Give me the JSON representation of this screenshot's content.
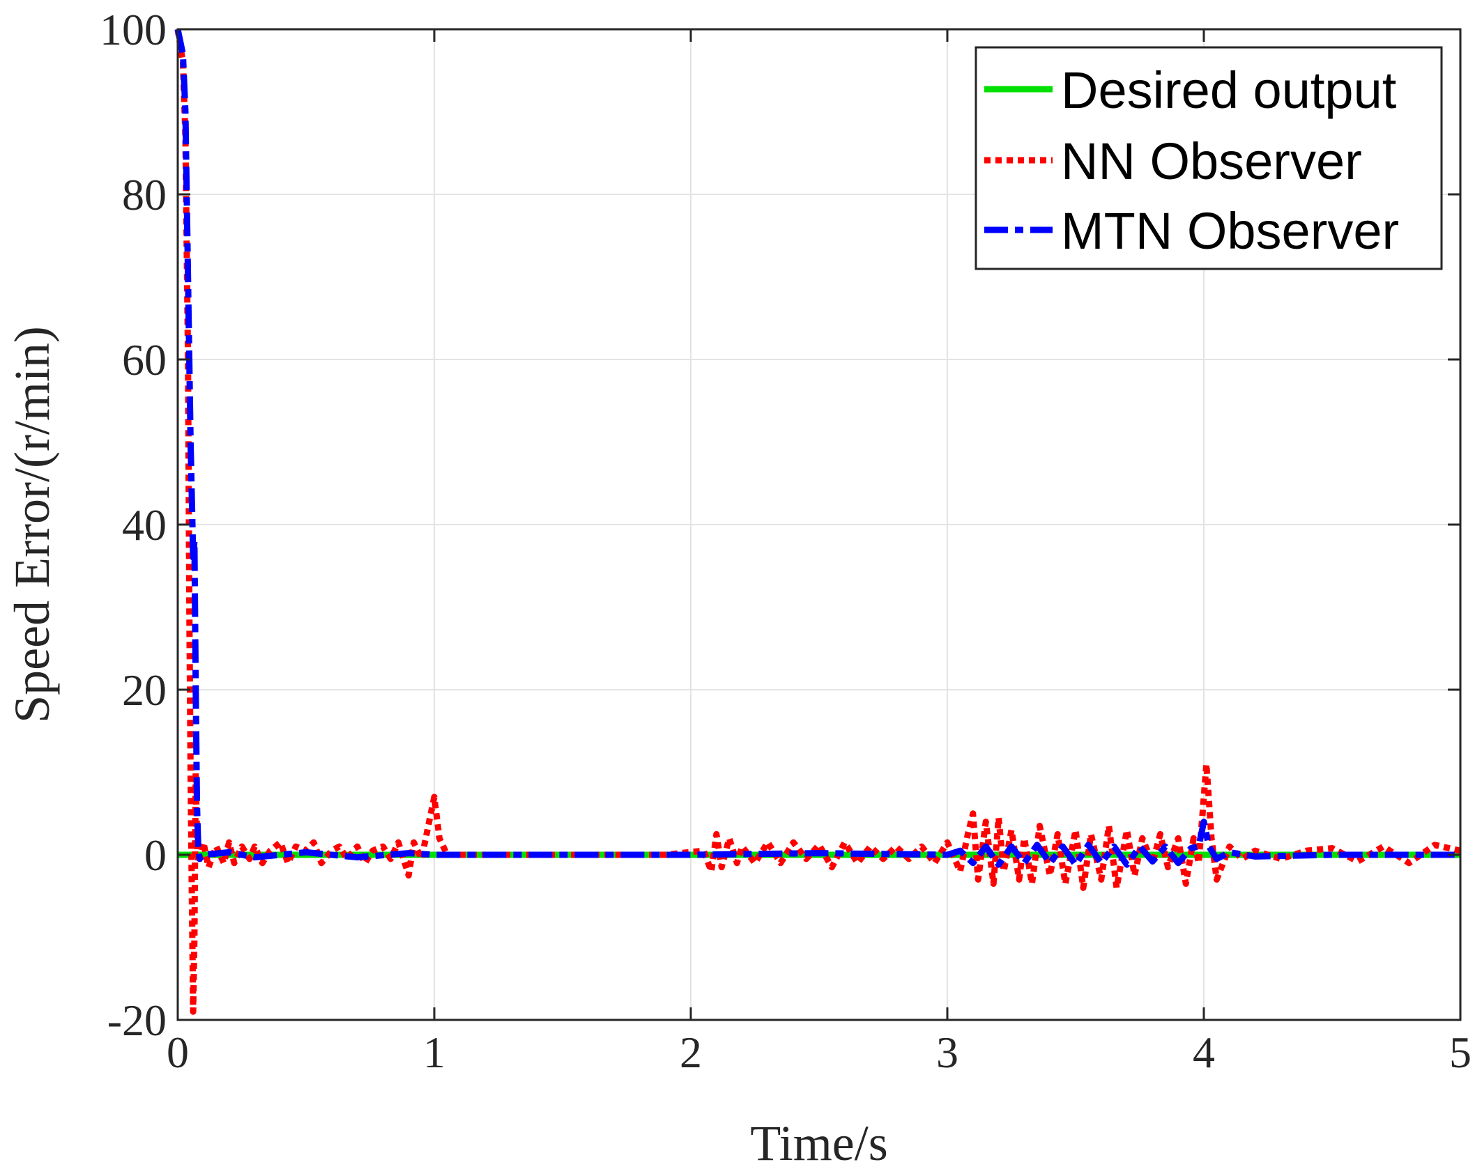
{
  "chart_data": {
    "type": "line",
    "title": "",
    "xlabel": "Time/s",
    "ylabel": "Speed Error/(r/min)",
    "xlim": [
      0,
      5
    ],
    "ylim": [
      -20,
      100
    ],
    "xticks": [
      "0",
      "1",
      "2",
      "3",
      "4",
      "5"
    ],
    "yticks": [
      "-20",
      "0",
      "20",
      "40",
      "60",
      "80",
      "100"
    ],
    "grid": true,
    "legend_position": "top-right",
    "series": [
      {
        "name": "Desired output",
        "color": "#00e000",
        "style": "solid",
        "x": [
          0,
          5
        ],
        "y": [
          0,
          0
        ]
      },
      {
        "name": "NN Observer",
        "color": "#ff0000",
        "style": "dotted",
        "x": [
          0,
          0.02,
          0.03,
          0.04,
          0.045,
          0.05,
          0.055,
          0.06,
          0.065,
          0.07,
          0.075,
          0.08,
          0.1,
          0.12,
          0.15,
          0.18,
          0.2,
          0.22,
          0.25,
          0.28,
          0.3,
          0.33,
          0.36,
          0.4,
          0.43,
          0.46,
          0.5,
          0.53,
          0.56,
          0.6,
          0.63,
          0.66,
          0.7,
          0.73,
          0.76,
          0.8,
          0.83,
          0.86,
          0.9,
          0.92,
          0.95,
          0.98,
          1.0,
          1.02,
          1.05,
          1.1,
          1.5,
          1.9,
          2.05,
          2.08,
          2.1,
          2.12,
          2.15,
          2.18,
          2.2,
          2.25,
          2.3,
          2.35,
          2.4,
          2.45,
          2.5,
          2.55,
          2.6,
          2.65,
          2.7,
          2.75,
          2.8,
          2.85,
          2.9,
          2.95,
          3.0,
          3.05,
          3.08,
          3.1,
          3.12,
          3.15,
          3.18,
          3.2,
          3.22,
          3.25,
          3.28,
          3.3,
          3.33,
          3.36,
          3.4,
          3.43,
          3.46,
          3.5,
          3.53,
          3.56,
          3.6,
          3.63,
          3.66,
          3.7,
          3.73,
          3.76,
          3.8,
          3.83,
          3.86,
          3.9,
          3.93,
          3.96,
          3.98,
          4.0,
          4.01,
          4.03,
          4.05,
          4.1,
          4.15,
          4.2,
          4.3,
          4.4,
          4.5,
          4.6,
          4.7,
          4.8,
          4.9,
          5.0
        ],
        "y": [
          100,
          96,
          87,
          60,
          30,
          10,
          -5,
          -19,
          -10,
          10,
          2,
          -1,
          1.5,
          -1.5,
          1,
          -1,
          1.5,
          -1,
          1,
          -0.5,
          1,
          -1,
          0.5,
          1.5,
          -1,
          1,
          0.5,
          1.5,
          -1,
          0.5,
          1,
          -0.5,
          1,
          -1,
          0.5,
          1,
          -0.5,
          1.5,
          -2.5,
          1.5,
          -0.5,
          4,
          7,
          2,
          0,
          0,
          0,
          0,
          0.5,
          -2,
          2.5,
          -1.5,
          2,
          -1,
          1,
          -1,
          1.5,
          -1,
          1.5,
          -0.5,
          1.2,
          -1.5,
          1.5,
          -1,
          1,
          -0.5,
          1,
          -0.5,
          1,
          -1,
          1.5,
          -2,
          2.5,
          5,
          -3,
          4,
          -3.5,
          4.5,
          -2,
          3,
          -3,
          2,
          -3.5,
          3.5,
          -2.5,
          2.5,
          -3.5,
          3,
          -4,
          2.5,
          -3,
          3.5,
          -4,
          3,
          -2.5,
          2,
          -1,
          2.5,
          -1.5,
          2,
          -3.5,
          2,
          -1,
          7,
          11,
          2,
          -3,
          1,
          -0.5,
          0.5,
          -0.5,
          0.5,
          0.8,
          -0.8,
          1,
          -1,
          1.2,
          0.5
        ]
      },
      {
        "name": "MTN Observer",
        "color": "#0000ff",
        "style": "dashed",
        "x": [
          0,
          0.02,
          0.03,
          0.04,
          0.05,
          0.06,
          0.065,
          0.07,
          0.075,
          0.08,
          0.085,
          0.1,
          0.2,
          0.3,
          0.5,
          0.7,
          0.9,
          1.0,
          2.0,
          2.5,
          3.0,
          3.05,
          3.1,
          3.15,
          3.2,
          3.25,
          3.3,
          3.35,
          3.4,
          3.45,
          3.5,
          3.55,
          3.6,
          3.65,
          3.7,
          3.75,
          3.8,
          3.85,
          3.9,
          3.95,
          3.98,
          4.0,
          4.02,
          4.05,
          4.1,
          4.2,
          4.5,
          5.0
        ],
        "y": [
          100,
          97,
          90,
          70,
          50,
          36,
          38,
          20,
          6,
          1,
          -0.5,
          0,
          0.3,
          -0.3,
          0.3,
          -0.3,
          0.2,
          0,
          0,
          0.2,
          0,
          0.5,
          -1,
          1,
          -1.2,
          1,
          -1,
          1.2,
          -1,
          1,
          -1.2,
          1.2,
          -1,
          1,
          -1.2,
          1,
          -0.8,
          1,
          -1,
          0.8,
          1,
          4,
          1,
          -0.5,
          0.3,
          -0.2,
          0,
          0
        ]
      }
    ]
  }
}
